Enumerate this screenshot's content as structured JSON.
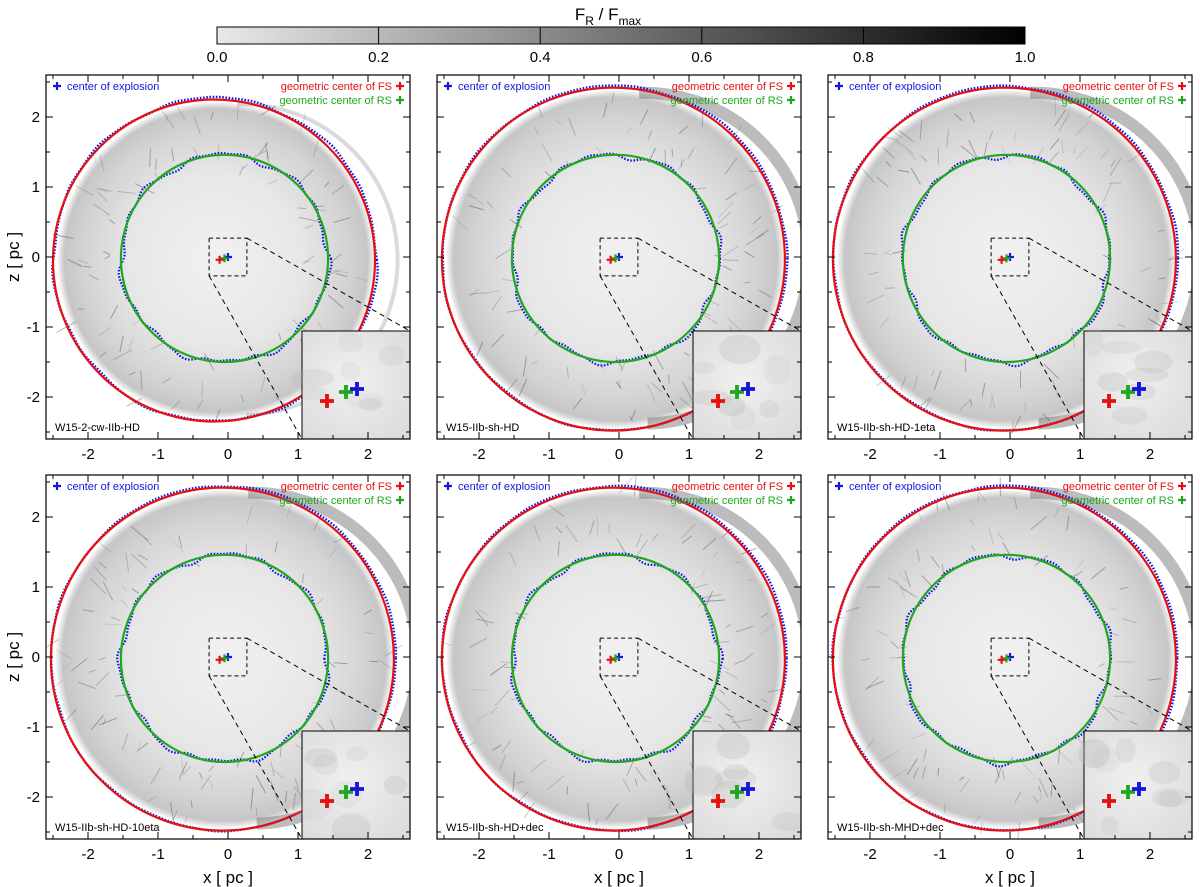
{
  "colorbar": {
    "title_main": "F",
    "title_sub1": "R",
    "title_sep": " / F",
    "title_sub2": "max",
    "ticks": [
      "0.0",
      "0.2",
      "0.4",
      "0.6",
      "0.8",
      "1.0"
    ],
    "range": [
      0.0,
      1.0
    ]
  },
  "axes": {
    "xlabel": "x [ pc ]",
    "ylabel": "z [ pc ]",
    "xticks": [
      "-2",
      "-1",
      "0",
      "1",
      "2"
    ],
    "yticks": [
      "2",
      "1",
      "0",
      "-1",
      "-2"
    ],
    "xlim": [
      -2.6,
      2.6
    ],
    "ylim": [
      -2.6,
      2.6
    ]
  },
  "legend": {
    "explosion": "center of explosion",
    "fs": "geometric center of FS",
    "rs": "geometric center of RS"
  },
  "colors": {
    "explosion": "#1515e0",
    "fs": "#e51010",
    "rs": "#1fa81f"
  },
  "chart_data": [
    {
      "type": "scatter",
      "model": "W15-2-cw-IIb-HD",
      "fs_radius": 2.3,
      "fs_center": [
        -0.2,
        -0.05
      ],
      "rs_radius": 1.48,
      "rs_center": [
        -0.05,
        -0.02
      ]
    },
    {
      "type": "scatter",
      "model": "W15-IIb-sh-HD",
      "fs_radius": 2.45,
      "fs_center": [
        -0.08,
        -0.03
      ],
      "rs_radius": 1.48,
      "rs_center": [
        -0.05,
        -0.02
      ]
    },
    {
      "type": "scatter",
      "model": "W15-IIb-sh-HD-1eta",
      "fs_radius": 2.45,
      "fs_center": [
        -0.08,
        -0.03
      ],
      "rs_radius": 1.48,
      "rs_center": [
        -0.05,
        -0.02
      ]
    },
    {
      "type": "scatter",
      "model": "W15-IIb-sh-HD-10eta",
      "fs_radius": 2.45,
      "fs_center": [
        -0.08,
        -0.03
      ],
      "rs_radius": 1.48,
      "rs_center": [
        -0.05,
        -0.02
      ]
    },
    {
      "type": "scatter",
      "model": "W15-IIb-sh-HD+dec",
      "fs_radius": 2.45,
      "fs_center": [
        -0.08,
        -0.03
      ],
      "rs_radius": 1.48,
      "rs_center": [
        -0.05,
        -0.02
      ]
    },
    {
      "type": "scatter",
      "model": "W15-IIb-sh-MHD+dec",
      "fs_radius": 2.45,
      "fs_center": [
        -0.08,
        -0.03
      ],
      "rs_radius": 1.48,
      "rs_center": [
        -0.05,
        -0.02
      ]
    }
  ]
}
